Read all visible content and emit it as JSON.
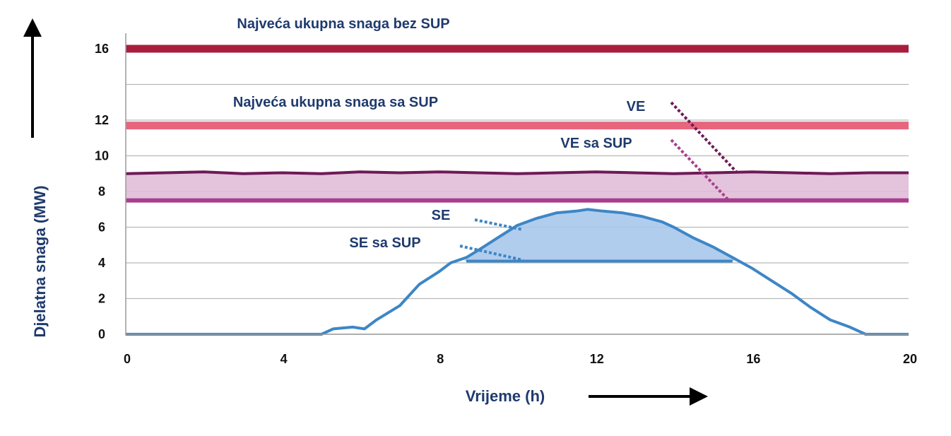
{
  "chart_data": {
    "type": "line",
    "xlabel": "Vrijeme (h)",
    "ylabel": "Djelatna snaga (MW)",
    "xlim": [
      0,
      20
    ],
    "ylim": [
      0,
      17
    ],
    "x_ticks": [
      "0",
      "4",
      "8",
      "12",
      "16",
      "20"
    ],
    "y_ticks": [
      "0",
      "2",
      "4",
      "6",
      "8",
      "10",
      "12",
      "16"
    ],
    "grid_values": [
      0,
      2,
      4,
      6,
      8,
      10,
      12,
      14,
      16
    ],
    "grid": true,
    "legend": "none",
    "colors": {
      "max_bez_sup": "#a81e3c",
      "max_sa_sup": "#e8657e",
      "ve": "#6e1a57",
      "ve_sa_sup": "#a83f8c",
      "ve_band": "#dfb9d6",
      "se": "#3d86c6",
      "se_fill": "#a9c8eb",
      "grid": "#b8b8b8",
      "annotation": "#1f3a6e"
    },
    "series": [
      {
        "key": "max_bez_sup",
        "x": [
          0,
          20
        ],
        "y": [
          16,
          16
        ]
      },
      {
        "key": "max_sa_sup",
        "x": [
          0,
          20
        ],
        "y": [
          11.7,
          11.7
        ]
      },
      {
        "key": "ve",
        "x": [
          0,
          1,
          2,
          3,
          4,
          5,
          6,
          7,
          8,
          9,
          10,
          11,
          12,
          13,
          14,
          15,
          16,
          17,
          18,
          19,
          20
        ],
        "y": [
          9.0,
          9.05,
          9.1,
          9.0,
          9.05,
          9.0,
          9.1,
          9.05,
          9.1,
          9.05,
          9.0,
          9.05,
          9.1,
          9.05,
          9.0,
          9.05,
          9.1,
          9.05,
          9.0,
          9.05,
          9.05
        ]
      },
      {
        "key": "ve_sa_sup",
        "x": [
          0,
          20
        ],
        "y": [
          7.5,
          7.5
        ]
      },
      {
        "key": "se",
        "x": [
          0,
          5,
          5.3,
          5.8,
          6.1,
          6.4,
          7,
          7.5,
          8,
          8.3,
          8.7,
          9,
          9.5,
          10,
          10.5,
          11,
          11.5,
          11.8,
          12.2,
          12.7,
          13.2,
          13.7,
          14,
          14.5,
          15,
          15.5,
          16,
          16.5,
          17,
          17.5,
          18,
          18.5,
          18.9,
          19.3,
          20
        ],
        "y": [
          0,
          0,
          0.3,
          0.4,
          0.3,
          0.8,
          1.6,
          2.8,
          3.5,
          4.0,
          4.3,
          4.7,
          5.4,
          6.1,
          6.5,
          6.8,
          6.9,
          7.0,
          6.9,
          6.8,
          6.6,
          6.3,
          6.0,
          5.4,
          4.9,
          4.3,
          3.7,
          3.0,
          2.3,
          1.5,
          0.8,
          0.4,
          0.0,
          0.0,
          0.0
        ]
      },
      {
        "key": "se_sa_sup",
        "x": [
          8.7,
          15.5
        ],
        "y": [
          4.1,
          4.1
        ]
      }
    ],
    "annotations": [
      {
        "id": "max-bez-sup",
        "text": "Najveća ukupna snaga bez SUP"
      },
      {
        "id": "max-sa-sup",
        "text": "Najveća ukupna snaga sa SUP"
      },
      {
        "id": "ve",
        "text": "VE"
      },
      {
        "id": "ve-sa-sup",
        "text": "VE sa SUP"
      },
      {
        "id": "se",
        "text": "SE"
      },
      {
        "id": "se-sa-sup",
        "text": "SE sa SUP"
      }
    ]
  }
}
